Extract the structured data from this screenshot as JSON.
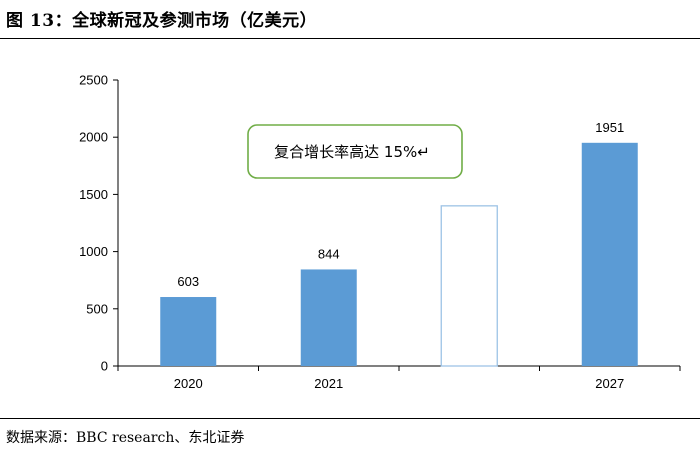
{
  "figure": {
    "title": "图 13：全球新冠及参测市场（亿美元）",
    "source": "数据来源：BBC research、东北证券"
  },
  "callout": {
    "text": "复合增长率高达 15%↵"
  },
  "colors": {
    "bar": "#5b9bd5",
    "hollow_bar_outline": "#9dc3e6",
    "callout_border": "#70ad47",
    "axis": "#000000"
  },
  "chart_data": {
    "type": "bar",
    "categories": [
      "2020",
      "2021",
      "",
      "2027"
    ],
    "values": [
      603,
      844,
      1400,
      1951
    ],
    "data_labels": [
      "603",
      "844",
      "",
      "1951"
    ],
    "hollow": [
      false,
      false,
      true,
      false
    ],
    "ylim": [
      0,
      2500
    ],
    "yticks": [
      0,
      500,
      1000,
      1500,
      2000,
      2500
    ],
    "grid": false,
    "legend": "none"
  }
}
